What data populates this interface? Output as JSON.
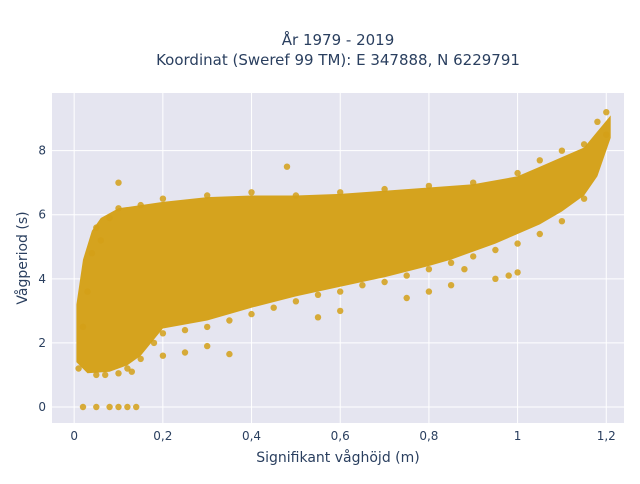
{
  "chart_data": {
    "type": "scatter",
    "title": "År 1979 - 2019",
    "subtitle": "Koordinat (Sweref 99 TM): E 347888, N 6229791",
    "xlabel": "Signifikant våghöjd (m)",
    "ylabel": "Vågperiod (s)",
    "xlim": [
      -0.05,
      1.24
    ],
    "ylim": [
      -0.5,
      9.8
    ],
    "x_ticks": [
      0,
      0.2,
      0.4,
      0.6,
      0.8,
      1,
      1.2
    ],
    "x_tick_labels": [
      "0",
      "0,2",
      "0,4",
      "0,6",
      "0,8",
      "1",
      "1,2"
    ],
    "y_ticks": [
      0,
      2,
      4,
      6,
      8
    ],
    "y_tick_labels": [
      "0",
      "2",
      "4",
      "6",
      "8"
    ],
    "grid": true,
    "marker_color": "#D4A017",
    "background_color": "#E5E5F0",
    "series": [
      {
        "points": [
          [
            0.01,
            1.2
          ],
          [
            0.02,
            2.5
          ],
          [
            0.03,
            3.6
          ],
          [
            0.04,
            4.8
          ],
          [
            0.05,
            5.6
          ],
          [
            0.06,
            5.2
          ],
          [
            0.08,
            5.9
          ],
          [
            0.1,
            6.2
          ],
          [
            0.1,
            7.0
          ],
          [
            0.12,
            1.2
          ],
          [
            0.15,
            1.5
          ],
          [
            0.18,
            2.0
          ],
          [
            0.2,
            2.3
          ],
          [
            0.25,
            2.4
          ],
          [
            0.3,
            2.5
          ],
          [
            0.35,
            2.7
          ],
          [
            0.4,
            2.9
          ],
          [
            0.45,
            3.1
          ],
          [
            0.5,
            3.3
          ],
          [
            0.55,
            3.5
          ],
          [
            0.6,
            3.6
          ],
          [
            0.65,
            3.8
          ],
          [
            0.7,
            3.9
          ],
          [
            0.75,
            4.1
          ],
          [
            0.8,
            4.3
          ],
          [
            0.85,
            4.5
          ],
          [
            0.9,
            4.7
          ],
          [
            0.95,
            4.9
          ],
          [
            1.0,
            5.1
          ],
          [
            1.05,
            5.4
          ],
          [
            1.1,
            5.8
          ],
          [
            1.15,
            6.5
          ],
          [
            1.2,
            8.5
          ],
          [
            0.15,
            6.3
          ],
          [
            0.2,
            6.5
          ],
          [
            0.3,
            6.6
          ],
          [
            0.4,
            6.7
          ],
          [
            0.5,
            6.6
          ],
          [
            0.48,
            7.5
          ],
          [
            0.6,
            6.7
          ],
          [
            0.7,
            6.8
          ],
          [
            0.8,
            6.9
          ],
          [
            0.9,
            7.0
          ],
          [
            1.0,
            7.3
          ],
          [
            1.05,
            7.7
          ],
          [
            1.1,
            8.0
          ],
          [
            1.15,
            8.2
          ],
          [
            1.2,
            9.2
          ],
          [
            1.18,
            8.9
          ],
          [
            0.02,
            0
          ],
          [
            0.05,
            0
          ],
          [
            0.08,
            0
          ],
          [
            0.1,
            0
          ],
          [
            0.12,
            0
          ],
          [
            0.14,
            0
          ],
          [
            0.05,
            1.0
          ],
          [
            0.07,
            1.0
          ],
          [
            0.1,
            1.05
          ],
          [
            0.13,
            1.1
          ],
          [
            0.2,
            1.6
          ],
          [
            0.25,
            1.7
          ],
          [
            0.3,
            1.9
          ],
          [
            0.35,
            1.65
          ],
          [
            0.55,
            2.8
          ],
          [
            0.6,
            3.0
          ],
          [
            0.75,
            3.4
          ],
          [
            0.8,
            3.6
          ],
          [
            0.85,
            3.8
          ],
          [
            0.88,
            4.3
          ],
          [
            0.95,
            4.0
          ],
          [
            0.98,
            4.1
          ],
          [
            1.0,
            4.2
          ]
        ]
      }
    ]
  }
}
